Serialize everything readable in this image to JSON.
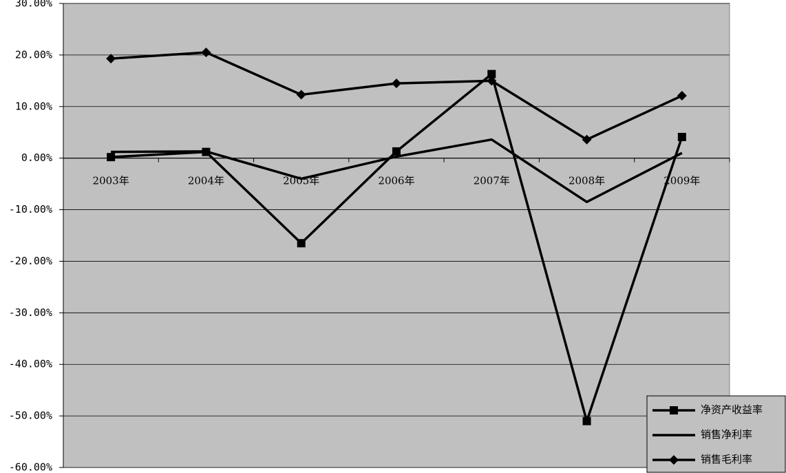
{
  "chart_data": {
    "type": "line",
    "categories": [
      "2003年",
      "2004年",
      "2005年",
      "2006年",
      "2007年",
      "2008年",
      "2009年"
    ],
    "series": [
      {
        "name": "净资产收益率",
        "color": "#000000",
        "marker": "square",
        "values": [
          0.2,
          1.2,
          -16.5,
          1.3,
          16.3,
          -51.0,
          4.1
        ]
      },
      {
        "name": "销售净利率",
        "color": "#000000",
        "marker": "none",
        "values": [
          1.2,
          1.3,
          -4.0,
          0.3,
          3.6,
          -8.5,
          1.0
        ]
      },
      {
        "name": "销售毛利率",
        "color": "#000000",
        "marker": "diamond",
        "values": [
          19.3,
          20.5,
          12.3,
          14.5,
          15.0,
          3.6,
          12.1
        ]
      }
    ],
    "ylim": [
      -60,
      30
    ],
    "yticks": [
      {
        "value": 30,
        "label": "30.00%"
      },
      {
        "value": 20,
        "label": "20.00%"
      },
      {
        "value": 10,
        "label": "10.00%"
      },
      {
        "value": 0,
        "label": "0.00%"
      },
      {
        "value": -10,
        "label": "-10.00%"
      },
      {
        "value": -20,
        "label": "-20.00%"
      },
      {
        "value": -30,
        "label": "-30.00%"
      },
      {
        "value": -40,
        "label": "-40.00%"
      },
      {
        "value": -50,
        "label": "-50.00%"
      },
      {
        "value": -60,
        "label": "-60.00%"
      }
    ],
    "grid": true,
    "plot_background": "#c0c0c0",
    "legend": "bottom-right"
  }
}
